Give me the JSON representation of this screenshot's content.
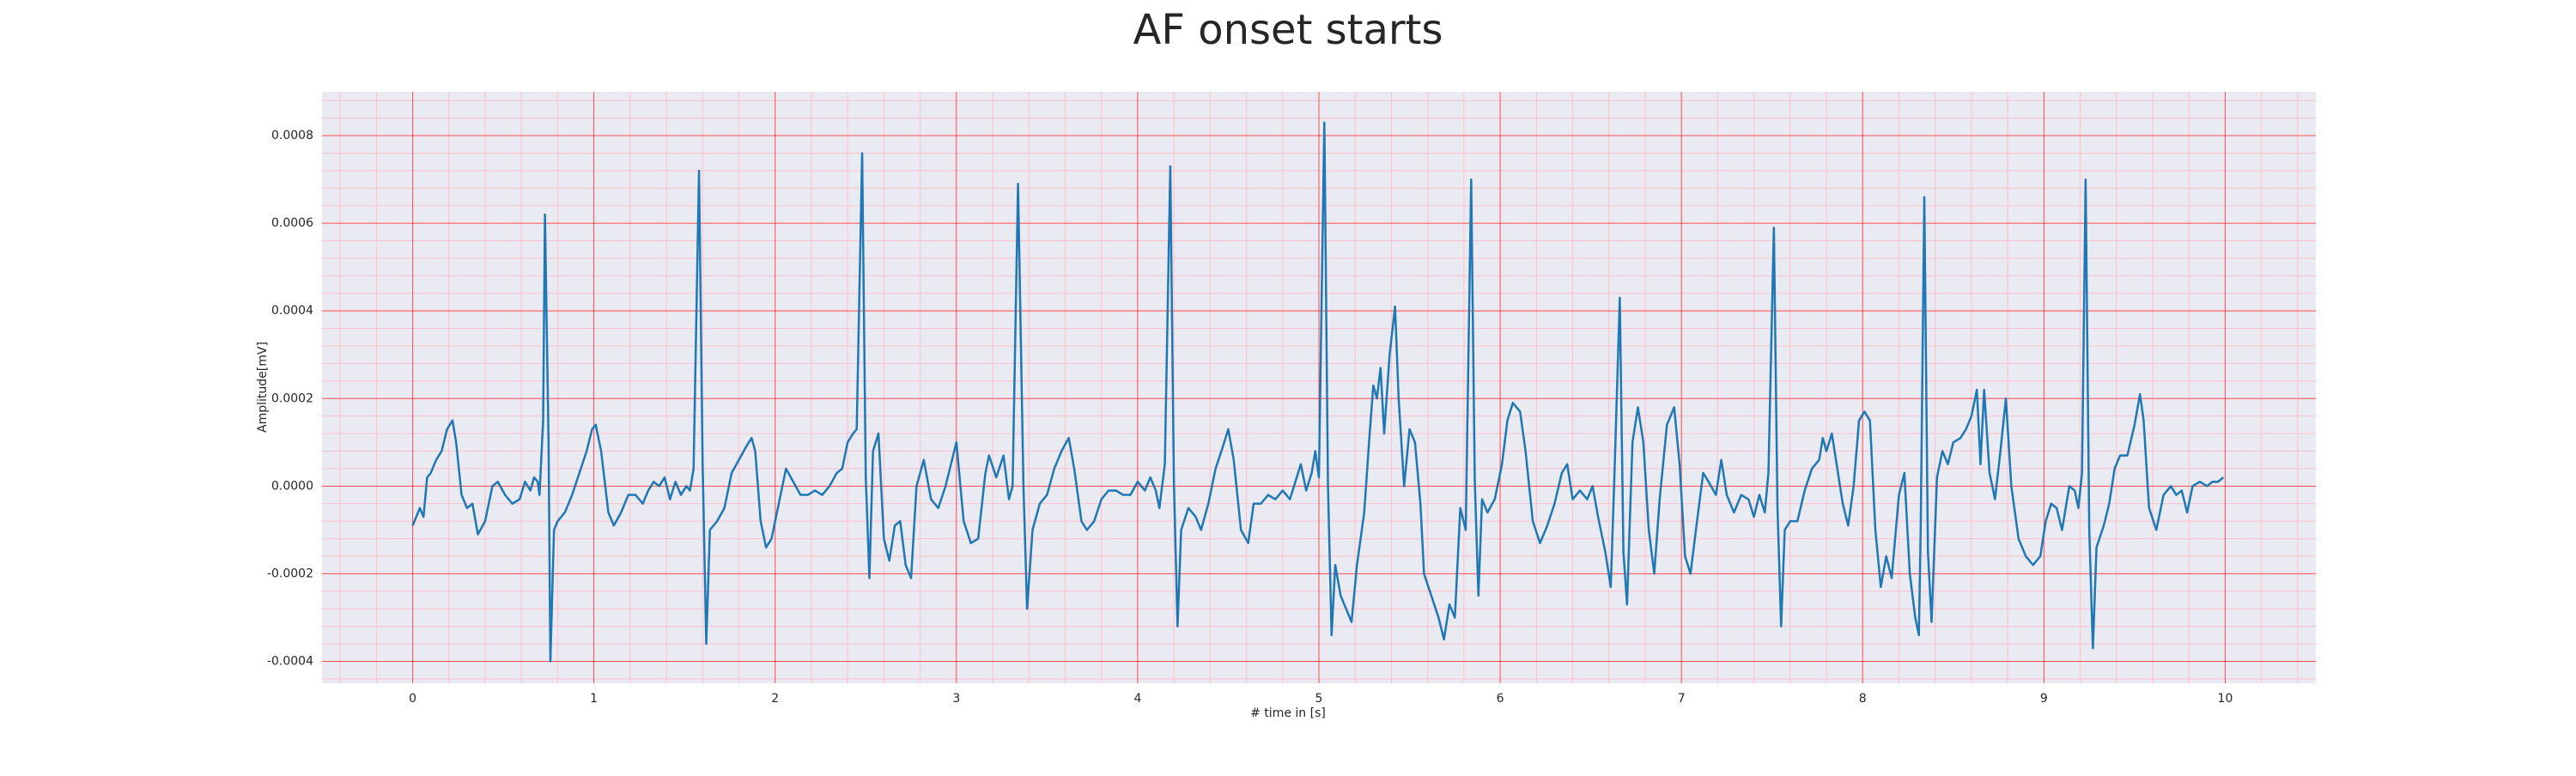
{
  "chart_data": {
    "type": "line",
    "title": "AF onset starts",
    "xlabel": "# time in [s]",
    "ylabel": "Amplitude[mV]",
    "color": "#1f77b4",
    "grid": true,
    "minor_grid": true,
    "xlim": [
      -0.5,
      10.5
    ],
    "xticks": [
      0,
      1,
      2,
      3,
      4,
      5,
      6,
      7,
      8,
      9,
      10
    ],
    "ylim": [
      -0.00045,
      0.0009
    ],
    "yticks": [
      -0.0004,
      -0.0002,
      {
        "value": 0,
        "label": "0.0000"
      },
      0.0002,
      0.0004,
      0.0006,
      0.0008
    ],
    "x": [
      0.0,
      0.02,
      0.04,
      0.06,
      0.08,
      0.1,
      0.13,
      0.16,
      0.19,
      0.22,
      0.24,
      0.27,
      0.3,
      0.33,
      0.36,
      0.4,
      0.44,
      0.47,
      0.51,
      0.55,
      0.59,
      0.62,
      0.65,
      0.67,
      0.69,
      0.7,
      0.72,
      0.73,
      0.75,
      0.76,
      0.78,
      0.8,
      0.84,
      0.88,
      0.92,
      0.96,
      0.99,
      1.01,
      1.04,
      1.08,
      1.11,
      1.15,
      1.19,
      1.23,
      1.27,
      1.3,
      1.33,
      1.36,
      1.39,
      1.42,
      1.45,
      1.48,
      1.51,
      1.53,
      1.55,
      1.58,
      1.6,
      1.62,
      1.64,
      1.68,
      1.72,
      1.76,
      1.8,
      1.84,
      1.87,
      1.89,
      1.92,
      1.95,
      1.98,
      2.02,
      2.06,
      2.1,
      2.14,
      2.18,
      2.22,
      2.26,
      2.3,
      2.34,
      2.37,
      2.4,
      2.43,
      2.45,
      2.48,
      2.5,
      2.52,
      2.54,
      2.57,
      2.6,
      2.63,
      2.66,
      2.69,
      2.72,
      2.75,
      2.78,
      2.82,
      2.86,
      2.9,
      2.94,
      3.0,
      3.04,
      3.08,
      3.12,
      3.16,
      3.18,
      3.22,
      3.26,
      3.29,
      3.31,
      3.34,
      3.37,
      3.39,
      3.42,
      3.46,
      3.5,
      3.54,
      3.58,
      3.62,
      3.65,
      3.69,
      3.72,
      3.76,
      3.8,
      3.84,
      3.88,
      3.92,
      3.96,
      4.0,
      4.04,
      4.07,
      4.1,
      4.12,
      4.15,
      4.18,
      4.2,
      4.22,
      4.24,
      4.28,
      4.32,
      4.35,
      4.39,
      4.43,
      4.47,
      4.5,
      4.53,
      4.57,
      4.61,
      4.64,
      4.68,
      4.72,
      4.76,
      4.8,
      4.84,
      4.87,
      4.9,
      4.93,
      4.96,
      4.98,
      5.0,
      5.03,
      5.05,
      5.07,
      5.09,
      5.12,
      5.15,
      5.18,
      5.21,
      5.25,
      5.28,
      5.3,
      5.32,
      5.34,
      5.36,
      5.39,
      5.42,
      5.44,
      5.47,
      5.5,
      5.53,
      5.56,
      5.58,
      5.62,
      5.66,
      5.69,
      5.72,
      5.75,
      5.78,
      5.81,
      5.84,
      5.86,
      5.88,
      5.9,
      5.93,
      5.97,
      6.01,
      6.04,
      6.07,
      6.11,
      6.14,
      6.18,
      6.22,
      6.26,
      6.3,
      6.34,
      6.37,
      6.4,
      6.44,
      6.48,
      6.51,
      6.54,
      6.58,
      6.61,
      6.63,
      6.66,
      6.68,
      6.7,
      6.73,
      6.76,
      6.79,
      6.82,
      6.85,
      6.88,
      6.92,
      6.96,
      6.99,
      7.02,
      7.05,
      7.08,
      7.12,
      7.15,
      7.19,
      7.22,
      7.25,
      7.29,
      7.33,
      7.37,
      7.4,
      7.43,
      7.46,
      7.48,
      7.51,
      7.53,
      7.55,
      7.57,
      7.6,
      7.64,
      7.68,
      7.72,
      7.76,
      7.78,
      7.8,
      7.83,
      7.86,
      7.89,
      7.92,
      7.95,
      7.98,
      8.01,
      8.04,
      8.07,
      8.1,
      8.13,
      8.16,
      8.2,
      8.23,
      8.26,
      8.29,
      8.31,
      8.32,
      8.34,
      8.36,
      8.38,
      8.41,
      8.44,
      8.47,
      8.5,
      8.54,
      8.57,
      8.6,
      8.63,
      8.65,
      8.67,
      8.7,
      8.73,
      8.76,
      8.79,
      8.82,
      8.86,
      8.9,
      8.94,
      8.98,
      9.01,
      9.04,
      9.07,
      9.1,
      9.14,
      9.17,
      9.19,
      9.21,
      9.23,
      9.25,
      9.27,
      9.29,
      9.33,
      9.36,
      9.39,
      9.42,
      9.46,
      9.5,
      9.53,
      9.55,
      9.58,
      9.62,
      9.66,
      9.7,
      9.73,
      9.76,
      9.79,
      9.82,
      9.86,
      9.9,
      9.93,
      9.96,
      9.99
    ],
    "values": [
      -9e-05,
      -7e-05,
      -5e-05,
      -7e-05,
      2e-05,
      3e-05,
      6e-05,
      8e-05,
      0.00013,
      0.00015,
      0.0001,
      -2e-05,
      -5e-05,
      -4e-05,
      -0.00011,
      -8e-05,
      0.0,
      1e-05,
      -2e-05,
      -4e-05,
      -3e-05,
      1e-05,
      -1e-05,
      2e-05,
      1e-05,
      -2e-05,
      0.00015,
      0.00062,
      0.0001,
      -0.0004,
      -0.0001,
      -8e-05,
      -6e-05,
      -2e-05,
      3e-05,
      8e-05,
      0.00013,
      0.00014,
      8e-05,
      -6e-05,
      -9e-05,
      -6e-05,
      -2e-05,
      -2e-05,
      -4e-05,
      -1e-05,
      1e-05,
      0.0,
      2e-05,
      -3e-05,
      1e-05,
      -2e-05,
      0.0,
      -1e-05,
      4e-05,
      0.00072,
      5e-05,
      -0.00036,
      -0.0001,
      -8e-05,
      -5e-05,
      3e-05,
      6e-05,
      9e-05,
      0.00011,
      8e-05,
      -8e-05,
      -0.00014,
      -0.00012,
      -4e-05,
      4e-05,
      1e-05,
      -2e-05,
      -2e-05,
      -1e-05,
      -2e-05,
      0.0,
      3e-05,
      4e-05,
      0.0001,
      0.00012,
      0.00013,
      0.00076,
      2e-05,
      -0.00021,
      8e-05,
      0.00012,
      -0.00012,
      -0.00017,
      -9e-05,
      -8e-05,
      -0.00018,
      -0.00021,
      0.0,
      6e-05,
      -3e-05,
      -5e-05,
      0.0,
      0.0001,
      -8e-05,
      -0.00013,
      -0.00012,
      3e-05,
      7e-05,
      2e-05,
      7e-05,
      -3e-05,
      0.0,
      0.00069,
      0.0,
      -0.00028,
      -0.0001,
      -4e-05,
      -2e-05,
      4e-05,
      8e-05,
      0.00011,
      4e-05,
      -8e-05,
      -0.0001,
      -8e-05,
      -3e-05,
      -1e-05,
      -1e-05,
      -2e-05,
      -2e-05,
      1e-05,
      -1e-05,
      2e-05,
      -1e-05,
      -5e-05,
      5e-05,
      0.00073,
      1e-05,
      -0.00032,
      -0.0001,
      -5e-05,
      -7e-05,
      -0.0001,
      -4e-05,
      4e-05,
      9e-05,
      0.00013,
      6e-05,
      -0.0001,
      -0.00013,
      -4e-05,
      -4e-05,
      -2e-05,
      -3e-05,
      -1e-05,
      -3e-05,
      1e-05,
      5e-05,
      -1e-05,
      3e-05,
      8e-05,
      2e-05,
      0.00083,
      0.0,
      -0.00034,
      -0.00018,
      -0.00025,
      -0.00028,
      -0.00031,
      -0.00018,
      -6e-05,
      0.00012,
      0.00023,
      0.0002,
      0.00027,
      0.00012,
      0.0003,
      0.00041,
      0.0002,
      0.0,
      0.00013,
      0.0001,
      -4e-05,
      -0.0002,
      -0.00025,
      -0.0003,
      -0.00035,
      -0.00027,
      -0.0003,
      -5e-05,
      -0.0001,
      0.0007,
      1e-05,
      -0.00025,
      -3e-05,
      -6e-05,
      -3e-05,
      5e-05,
      0.00015,
      0.00019,
      0.00017,
      8e-05,
      -8e-05,
      -0.00013,
      -9e-05,
      -4e-05,
      3e-05,
      5e-05,
      -3e-05,
      -1e-05,
      -3e-05,
      0.0,
      -7e-05,
      -0.00015,
      -0.00023,
      2e-05,
      0.00043,
      -0.00015,
      -0.00027,
      0.0001,
      0.00018,
      0.0001,
      -0.0001,
      -0.0002,
      -3e-05,
      0.00014,
      0.00018,
      5e-05,
      -0.00016,
      -0.0002,
      -0.0001,
      3e-05,
      1e-05,
      -2e-05,
      6e-05,
      -2e-05,
      -6e-05,
      -2e-05,
      -3e-05,
      -7e-05,
      -2e-05,
      -6e-05,
      3e-05,
      0.00059,
      -5e-05,
      -0.00032,
      -0.0001,
      -8e-05,
      -8e-05,
      -1e-05,
      4e-05,
      6e-05,
      0.00011,
      8e-05,
      0.00012,
      4e-05,
      -4e-05,
      -9e-05,
      0.0,
      0.00015,
      0.00017,
      0.00015,
      -0.0001,
      -0.00023,
      -0.00016,
      -0.00021,
      -2e-05,
      3e-05,
      -0.0002,
      -0.0003,
      -0.00034,
      -0.0001,
      0.00066,
      -0.00015,
      -0.00031,
      2e-05,
      8e-05,
      5e-05,
      0.0001,
      0.00011,
      0.00013,
      0.00016,
      0.00022,
      5e-05,
      0.00022,
      3e-05,
      -3e-05,
      8e-05,
      0.0002,
      0.0,
      -0.00012,
      -0.00016,
      -0.00018,
      -0.00016,
      -8e-05,
      -4e-05,
      -5e-05,
      -0.0001,
      0.0,
      -1e-05,
      -5e-05,
      3e-05,
      0.0007,
      -0.0001,
      -0.00037,
      -0.00014,
      -9e-05,
      -4e-05,
      4e-05,
      7e-05,
      7e-05,
      0.00014,
      0.00021,
      0.00015,
      -5e-05,
      -0.0001,
      -2e-05,
      0.0,
      -2e-05,
      -1e-05,
      -6e-05,
      0.0,
      1e-05,
      0.0,
      1e-05,
      1e-05,
      2e-05
    ]
  }
}
